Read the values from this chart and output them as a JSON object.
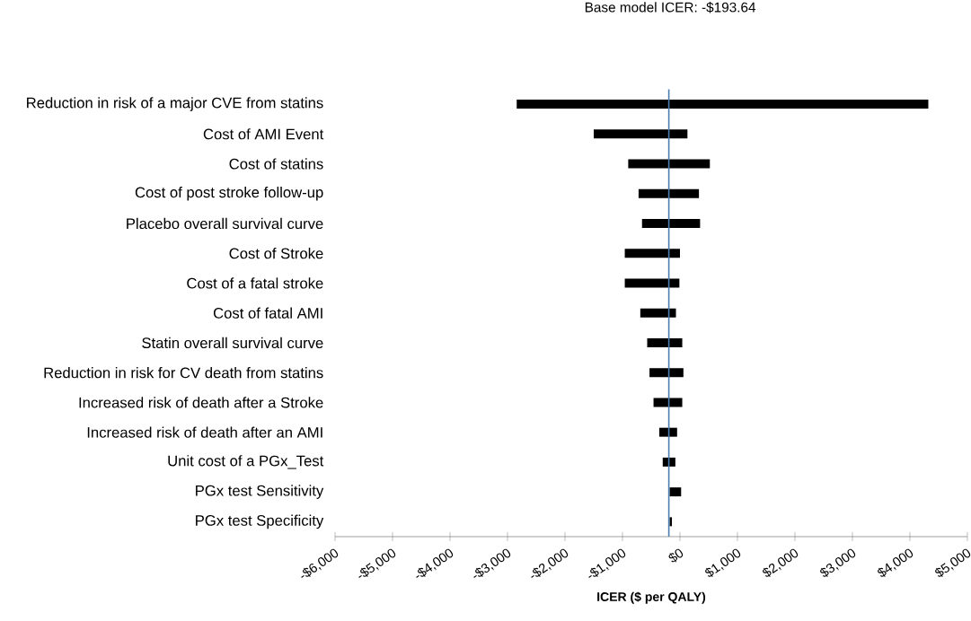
{
  "chart_data": {
    "type": "bar",
    "orientation": "horizontal",
    "title": "Base model ICER: -$193.64",
    "xlabel": "ICER ($ per QALY)",
    "categories": [
      "Reduction in risk  of a major CVE from statins",
      "Cost of AMI Event",
      "Cost of statins",
      "Cost of post stroke follow-up",
      "Placebo overall survival curve",
      "Cost of Stroke",
      "Cost of a fatal stroke",
      "Cost of fatal AMI",
      "Statin overall survival curve",
      "Reduction in risk for CV death from statins",
      "Increased risk of death after a Stroke",
      "Increased risk of death after an AMI",
      "Unit cost of a PGx_Test",
      "PGx test Sensitivity",
      "PGx test Specificity"
    ],
    "base": [
      -2840,
      -1500,
      -900,
      -720,
      -660,
      -960,
      -960,
      -690,
      -570,
      -530,
      -460,
      -360,
      -300,
      -180,
      -180
    ],
    "values": [
      7160,
      1630,
      1420,
      1050,
      1010,
      960,
      950,
      620,
      610,
      590,
      500,
      310,
      220,
      200,
      40
    ],
    "color": "#000000",
    "xlim": [
      -6000,
      5000
    ],
    "xticks": [
      {
        "value": -6000,
        "label": "-$6,000"
      },
      {
        "value": -5000,
        "label": "-$5,000"
      },
      {
        "value": -4000,
        "label": "-$4,000"
      },
      {
        "value": -3000,
        "label": "-$3,000"
      },
      {
        "value": -2000,
        "label": "-$2,000"
      },
      {
        "value": -1000,
        "label": "-$1,000"
      },
      {
        "value": 0,
        "label": "$0"
      },
      {
        "value": 1000,
        "label": "$1,000"
      },
      {
        "value": 2000,
        "label": "$2,000"
      },
      {
        "value": 3000,
        "label": "$3,000"
      },
      {
        "value": 4000,
        "label": "$4,000"
      },
      {
        "value": 5000,
        "label": "$5,000"
      }
    ],
    "ref_lines": [
      {
        "axis": "x",
        "value": -193.64,
        "color": "#4a7eb0"
      }
    ],
    "grid": false
  }
}
